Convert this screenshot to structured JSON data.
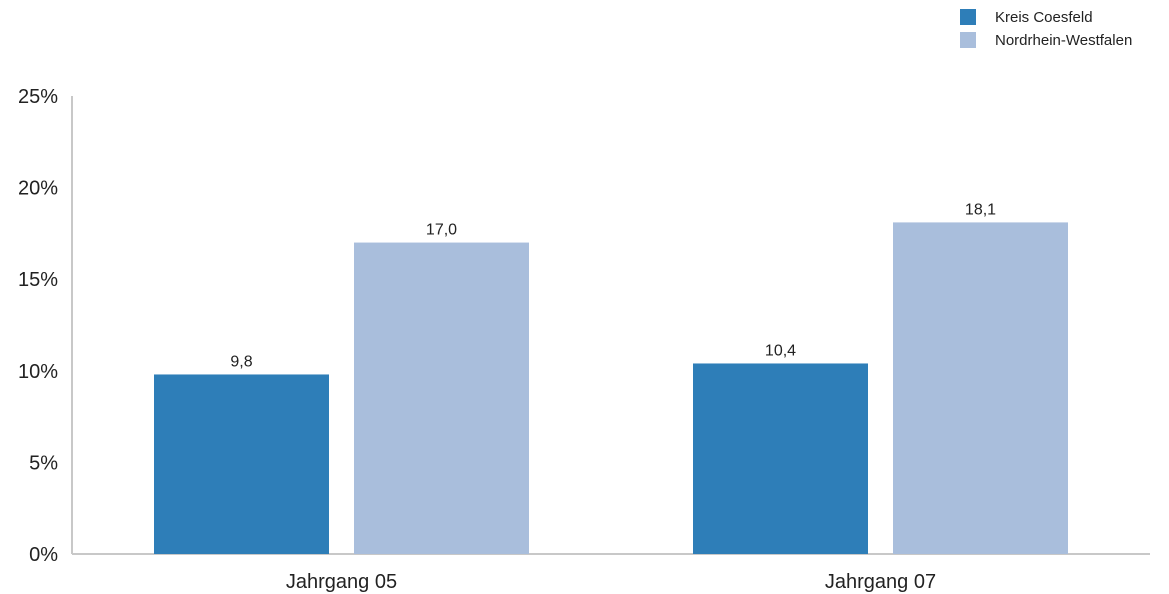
{
  "chart_data": {
    "type": "bar",
    "title": "",
    "xlabel": "",
    "ylabel": "",
    "categories": [
      "Jahrgang 05",
      "Jahrgang 07"
    ],
    "series": [
      {
        "name": "Kreis Coesfeld",
        "values": [
          9.8,
          10.4
        ],
        "labels": [
          "9,8",
          "10,4"
        ],
        "color": "#2e7eb8"
      },
      {
        "name": "Nordrhein-Westfalen",
        "values": [
          17.0,
          18.1
        ],
        "labels": [
          "17,0",
          "18,1"
        ],
        "color": "#a9bedc"
      }
    ],
    "ylim": [
      0,
      25
    ],
    "yticks": [
      0,
      5,
      10,
      15,
      20,
      25
    ],
    "ytick_labels": [
      "0%",
      "5%",
      "10%",
      "15%",
      "20%",
      "25%"
    ],
    "grid": false,
    "legend_position": "top-right",
    "axis_color": "#c8c8c8"
  }
}
